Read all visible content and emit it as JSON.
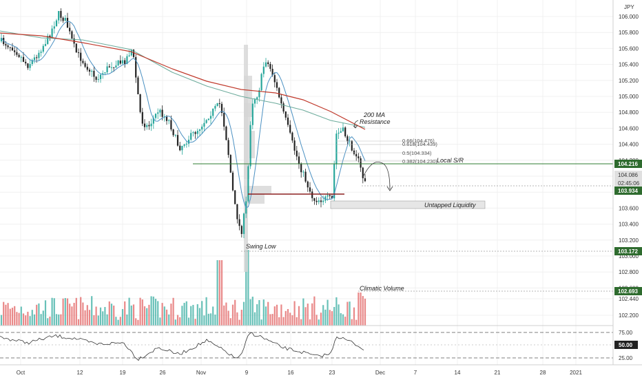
{
  "chart_data": {
    "type": "candlestick",
    "currency_label": "JPY",
    "y_ticks": [
      "106.000",
      "105.800",
      "105.600",
      "105.400",
      "105.200",
      "105.000",
      "104.800",
      "104.600",
      "104.400",
      "104.200",
      "104.000",
      "103.800",
      "103.600",
      "103.400",
      "103.200",
      "103.000",
      "102.800",
      "102.600",
      "102.440",
      "102.200"
    ],
    "x_ticks": [
      "Oct",
      "12",
      "19",
      "26",
      "Nov",
      "9",
      "16",
      "23",
      "Dec",
      "7",
      "14",
      "21",
      "28",
      "2021"
    ],
    "price_labels": [
      {
        "text": "104.216",
        "color": "#2e6b2e"
      },
      {
        "text": "104.086",
        "color": "#cfcfcf"
      },
      {
        "text": "02:45:06",
        "color": "#cfcfcf"
      },
      {
        "text": "103.934",
        "color": "#2e6b2e"
      },
      {
        "text": "103.172",
        "color": "#2e6b2e"
      },
      {
        "text": "102.693",
        "color": "#2e6b2e"
      }
    ],
    "rsi_ticks": [
      "75.00",
      "50.00",
      "25.00"
    ],
    "rsi_current": "50.00",
    "annotations": {
      "ma_resistance": [
        "200 MA",
        "Resistance"
      ],
      "local_sr": "Local S/R",
      "untapped_liquidity": "Untapped Liquidity",
      "swing_low": "Swing Low",
      "climatic_volume": "Climatic Volume"
    },
    "fib_levels": [
      "0.66(104.476)",
      "0.618(104.439)",
      "0.5(104.334)",
      "0.382(104.230)"
    ],
    "colors": {
      "up": "#26a69a",
      "down": "#222222",
      "ma_short": "#4a90c2",
      "ma_long": "#c0392b",
      "ma_mid": "#6aaa9a",
      "vol_up": "#4db6ac",
      "vol_down": "#e57373",
      "grid": "#f0f0f0"
    }
  }
}
